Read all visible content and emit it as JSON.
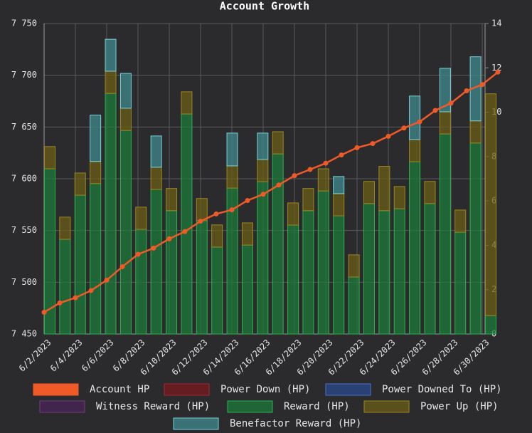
{
  "chart_data": {
    "type": "bar",
    "title": "Account Growth",
    "categories": [
      "6/2/2023",
      null,
      "6/4/2023",
      null,
      "6/6/2023",
      null,
      "6/8/2023",
      null,
      "6/10/2023",
      null,
      "6/12/2023",
      null,
      "6/14/2023",
      null,
      "6/16/2023",
      null,
      "6/18/2023",
      null,
      "6/20/2023",
      null,
      "6/22/2023",
      null,
      "6/24/2023",
      null,
      "6/26/2023",
      null,
      "6/28/2023",
      null,
      "6/30/2023",
      null
    ],
    "ylim": [
      7450,
      7750
    ],
    "yticks": [
      {
        "value": 7450,
        "label": "7 450"
      },
      {
        "value": 7500,
        "label": "7 500"
      },
      {
        "value": 7550,
        "label": "7 550"
      },
      {
        "value": 7600,
        "label": "7 600"
      },
      {
        "value": 7650,
        "label": "7 650"
      },
      {
        "value": 7700,
        "label": "7 700"
      },
      {
        "value": 7750,
        "label": "7 750"
      }
    ],
    "y2lim": [
      0,
      14
    ],
    "y2ticks": [
      0,
      2,
      4,
      6,
      8,
      10,
      12,
      14
    ],
    "grid": true,
    "legend": "bottom",
    "series": [
      {
        "name": "Account HP",
        "type": "line",
        "axis": "y",
        "color": "#f05a28",
        "values": [
          7471,
          7480,
          7485,
          7492,
          7502,
          7515,
          7527,
          7533,
          7542,
          7549,
          7559,
          7566,
          7570,
          7579,
          7585,
          7594,
          7603,
          7609,
          7615,
          7623,
          7630,
          7634,
          7641,
          7649,
          7655,
          7666,
          7673,
          7685,
          7691,
          7703
        ]
      },
      {
        "name": "Power Down (HP)",
        "type": "bar",
        "axis": "y2",
        "color": "#7a1a1f",
        "values": [
          null,
          null,
          null,
          null,
          null,
          null,
          null,
          null,
          null,
          null,
          null,
          null,
          null,
          null,
          null,
          null,
          null,
          null,
          null,
          null,
          null,
          null,
          null,
          null,
          null,
          null,
          null,
          null,
          null,
          null
        ]
      },
      {
        "name": "Power Downed To (HP)",
        "type": "bar",
        "axis": "y2",
        "color": "#294a8c",
        "values": [
          null,
          null,
          null,
          null,
          null,
          null,
          null,
          null,
          null,
          null,
          null,
          null,
          null,
          null,
          null,
          null,
          null,
          null,
          null,
          null,
          null,
          null,
          null,
          null,
          null,
          null,
          null,
          null,
          null,
          null
        ]
      },
      {
        "name": "Witness Reward (HP)",
        "type": "bar",
        "axis": "y2",
        "color": "#4a2458",
        "values": [
          null,
          null,
          null,
          null,
          null,
          null,
          null,
          null,
          null,
          null,
          null,
          null,
          null,
          null,
          null,
          null,
          null,
          null,
          null,
          null,
          null,
          null,
          null,
          null,
          null,
          null,
          null,
          null,
          null,
          null
        ]
      },
      {
        "name": "Reward (HP)",
        "type": "bar",
        "axis": "y2",
        "color": "#1d7a3a",
        "values": [
          7.45,
          4.27,
          6.26,
          6.78,
          10.85,
          9.18,
          4.72,
          6.52,
          5.56,
          9.92,
          5.11,
          3.92,
          6.58,
          4.01,
          6.87,
          8.12,
          4.91,
          5.56,
          6.45,
          5.33,
          2.57,
          5.88,
          5.56,
          5.65,
          7.77,
          5.88,
          9.02,
          4.59,
          8.61,
          0.83
        ]
      },
      {
        "name": "Power Up (HP)",
        "type": "bar",
        "axis": "y2",
        "color": "#6b5e16",
        "values": [
          1.0,
          1.0,
          1.0,
          1.0,
          1.0,
          1.0,
          1.0,
          1.0,
          1.0,
          1.0,
          1.0,
          1.0,
          1.0,
          1.0,
          1.0,
          1.0,
          1.0,
          1.0,
          1.0,
          1.0,
          1.0,
          1.0,
          2.0,
          1.0,
          1.0,
          1.0,
          1.0,
          1.0,
          1.0,
          10.0
        ]
      },
      {
        "name": "Benefactor Reward (HP)",
        "type": "bar",
        "axis": "y2",
        "color": "#3f8a8c",
        "values": [
          null,
          null,
          null,
          2.09,
          1.44,
          1.57,
          null,
          1.41,
          null,
          null,
          null,
          null,
          1.48,
          null,
          1.19,
          null,
          null,
          null,
          null,
          0.77,
          null,
          null,
          null,
          null,
          1.96,
          null,
          1.96,
          null,
          2.89,
          null
        ]
      }
    ]
  }
}
